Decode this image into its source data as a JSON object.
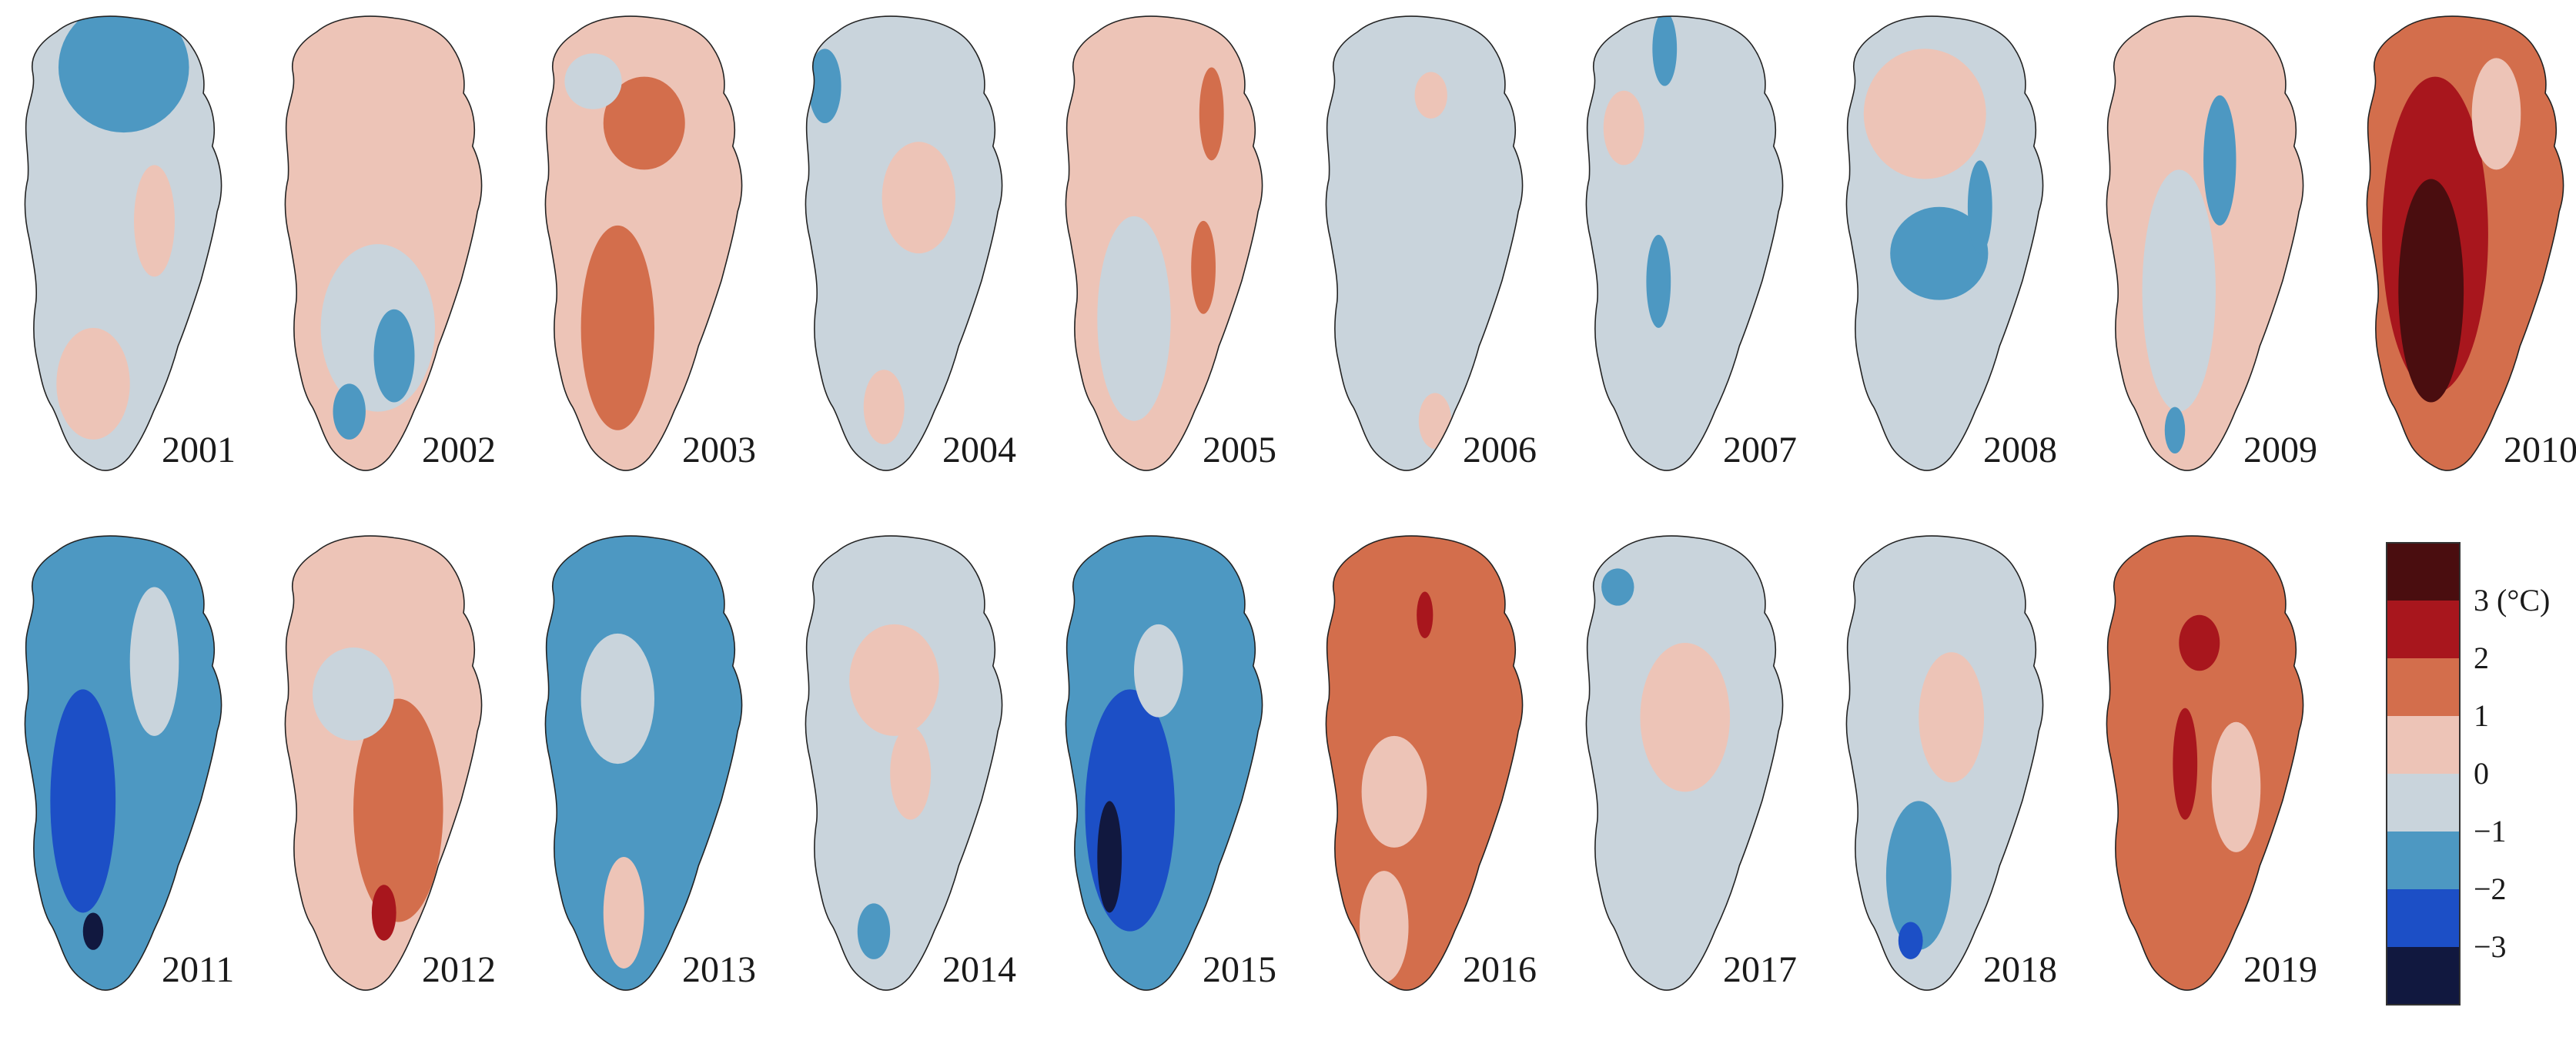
{
  "panels": [
    {
      "year": "2001",
      "base": "c0",
      "patches": [
        [
          "cm1",
          0.55,
          0.12,
          0.32,
          0.14
        ],
        [
          "c1",
          0.4,
          0.8,
          0.18,
          0.12
        ],
        [
          "c1",
          0.7,
          0.45,
          0.1,
          0.12
        ]
      ]
    },
    {
      "year": "2002",
      "base": "c1",
      "patches": [
        [
          "c0",
          0.52,
          0.68,
          0.28,
          0.18
        ],
        [
          "cm1",
          0.6,
          0.74,
          0.1,
          0.1
        ],
        [
          "cm1",
          0.38,
          0.86,
          0.08,
          0.06
        ]
      ]
    },
    {
      "year": "2003",
      "base": "c1",
      "patches": [
        [
          "c2",
          0.55,
          0.24,
          0.2,
          0.1
        ],
        [
          "c2",
          0.42,
          0.68,
          0.18,
          0.22
        ],
        [
          "c0",
          0.3,
          0.15,
          0.14,
          0.06
        ]
      ]
    },
    {
      "year": "2004",
      "base": "c0",
      "patches": [
        [
          "c1",
          0.62,
          0.4,
          0.18,
          0.12
        ],
        [
          "cm1",
          0.16,
          0.16,
          0.08,
          0.08
        ],
        [
          "c1",
          0.45,
          0.85,
          0.1,
          0.08
        ]
      ]
    },
    {
      "year": "2005",
      "base": "c1",
      "patches": [
        [
          "c0",
          0.4,
          0.66,
          0.18,
          0.22
        ],
        [
          "c2",
          0.78,
          0.22,
          0.06,
          0.1
        ],
        [
          "c2",
          0.74,
          0.55,
          0.06,
          0.1
        ]
      ]
    },
    {
      "year": "2006",
      "base": "c0",
      "patches": [
        [
          "c1",
          0.58,
          0.18,
          0.08,
          0.05
        ],
        [
          "c1",
          0.6,
          0.88,
          0.08,
          0.06
        ]
      ]
    },
    {
      "year": "2007",
      "base": "c0",
      "patches": [
        [
          "cm1",
          0.45,
          0.08,
          0.06,
          0.08
        ],
        [
          "c1",
          0.25,
          0.25,
          0.1,
          0.08
        ],
        [
          "cm1",
          0.42,
          0.58,
          0.06,
          0.1
        ]
      ]
    },
    {
      "year": "2008",
      "base": "c0",
      "patches": [
        [
          "c1",
          0.45,
          0.22,
          0.3,
          0.14
        ],
        [
          "cm1",
          0.52,
          0.52,
          0.24,
          0.1
        ],
        [
          "cm1",
          0.72,
          0.42,
          0.06,
          0.1
        ]
      ]
    },
    {
      "year": "2009",
      "base": "c1",
      "patches": [
        [
          "c0",
          0.42,
          0.6,
          0.18,
          0.26
        ],
        [
          "cm1",
          0.62,
          0.32,
          0.08,
          0.14
        ],
        [
          "cm1",
          0.4,
          0.9,
          0.05,
          0.05
        ]
      ]
    },
    {
      "year": "2010",
      "base": "c2",
      "patches": [
        [
          "c2b",
          0.4,
          0.48,
          0.26,
          0.34
        ],
        [
          "c3",
          0.38,
          0.6,
          0.16,
          0.24
        ],
        [
          "c1",
          0.7,
          0.22,
          0.12,
          0.12
        ]
      ]
    },
    {
      "year": "2011",
      "base": "cm1",
      "patches": [
        [
          "cm2",
          0.35,
          0.58,
          0.16,
          0.24
        ],
        [
          "c0",
          0.7,
          0.28,
          0.12,
          0.16
        ],
        [
          "cm3",
          0.4,
          0.86,
          0.05,
          0.04
        ]
      ]
    },
    {
      "year": "2012",
      "base": "c1",
      "patches": [
        [
          "c2",
          0.62,
          0.6,
          0.22,
          0.24
        ],
        [
          "c2b",
          0.55,
          0.82,
          0.06,
          0.06
        ],
        [
          "c0",
          0.4,
          0.35,
          0.2,
          0.1
        ]
      ]
    },
    {
      "year": "2013",
      "base": "cm1",
      "patches": [
        [
          "c0",
          0.42,
          0.36,
          0.18,
          0.14
        ],
        [
          "c1",
          0.45,
          0.82,
          0.1,
          0.12
        ]
      ]
    },
    {
      "year": "2014",
      "base": "c0",
      "patches": [
        [
          "c1",
          0.5,
          0.32,
          0.22,
          0.12
        ],
        [
          "c1",
          0.58,
          0.52,
          0.1,
          0.1
        ],
        [
          "cm1",
          0.4,
          0.86,
          0.08,
          0.06
        ]
      ]
    },
    {
      "year": "2015",
      "base": "cm1",
      "patches": [
        [
          "cm2",
          0.38,
          0.6,
          0.22,
          0.26
        ],
        [
          "cm3",
          0.28,
          0.7,
          0.06,
          0.12
        ],
        [
          "c0",
          0.52,
          0.3,
          0.12,
          0.1
        ]
      ]
    },
    {
      "year": "2016",
      "base": "c2",
      "patches": [
        [
          "c1",
          0.4,
          0.56,
          0.16,
          0.12
        ],
        [
          "c2b",
          0.55,
          0.18,
          0.04,
          0.05
        ],
        [
          "c1",
          0.35,
          0.85,
          0.12,
          0.12
        ]
      ]
    },
    {
      "year": "2017",
      "base": "c0",
      "patches": [
        [
          "c1",
          0.55,
          0.4,
          0.22,
          0.16
        ],
        [
          "cm1",
          0.22,
          0.12,
          0.08,
          0.04
        ]
      ]
    },
    {
      "year": "2018",
      "base": "c0",
      "patches": [
        [
          "c1",
          0.58,
          0.4,
          0.16,
          0.14
        ],
        [
          "cm1",
          0.42,
          0.74,
          0.16,
          0.16
        ],
        [
          "cm2",
          0.38,
          0.88,
          0.06,
          0.04
        ]
      ]
    },
    {
      "year": "2019",
      "base": "c2",
      "patches": [
        [
          "c2b",
          0.52,
          0.24,
          0.1,
          0.06
        ],
        [
          "c2b",
          0.45,
          0.5,
          0.06,
          0.12
        ],
        [
          "c1",
          0.7,
          0.55,
          0.12,
          0.14
        ]
      ]
    }
  ],
  "legend": {
    "labels": [
      "3 (°C)",
      "2",
      "1",
      "0",
      "−1",
      "−2",
      "−3"
    ],
    "bins": [
      {
        "range": "> 3",
        "color": "#4a0d0f"
      },
      {
        "range": "2 to 3",
        "color": "#a8161d"
      },
      {
        "range": "1 to 2",
        "color": "#d36e4c"
      },
      {
        "range": "0 to 1",
        "color": "#edc4b7"
      },
      {
        "range": "−1 to 0",
        "color": "#c9d4dc"
      },
      {
        "range": "−2 to −1",
        "color": "#4d98c2"
      },
      {
        "range": "−3 to −2",
        "color": "#1c4fc6"
      },
      {
        "range": "< −3",
        "color": "#11183f"
      }
    ]
  },
  "colors": {
    "c3": "#4a0d0f",
    "c2b": "#a8161d",
    "c2": "#d36e4c",
    "c1": "#edc4b7",
    "c0": "#c9d4dc",
    "cm1": "#4d98c2",
    "cm2": "#1c4fc6",
    "cm3": "#11183f"
  }
}
